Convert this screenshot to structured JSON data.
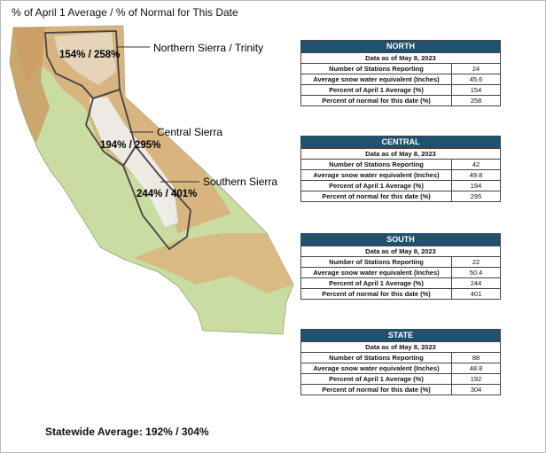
{
  "title": "% of April 1 Average / % of Normal for This Date",
  "regions": [
    {
      "name": "Northern Sierra / Trinity",
      "label": "154% / 258%"
    },
    {
      "name": "Central Sierra",
      "label": "194% / 295%"
    },
    {
      "name": "Southern Sierra",
      "label": "244% / 401%"
    }
  ],
  "tables": [
    {
      "title": "NORTH",
      "date": "Data as of May 8, 2023",
      "rows": [
        [
          "Number of Stations Reporting",
          24
        ],
        [
          "Average snow water equivalent (Inches)",
          45.6
        ],
        [
          "Percent of April 1 Average (%)",
          154
        ],
        [
          "Percent of normal for this date (%)",
          258
        ]
      ]
    },
    {
      "title": "CENTRAL",
      "date": "Data as of May 8, 2023",
      "rows": [
        [
          "Number of Stations Reporting",
          42
        ],
        [
          "Average snow water equivalent (Inches)",
          49.8
        ],
        [
          "Percent of April 1 Average (%)",
          194
        ],
        [
          "Percent of normal for this date (%)",
          295
        ]
      ]
    },
    {
      "title": "SOUTH",
      "date": "Data as of May 8, 2023",
      "rows": [
        [
          "Number of Stations Reporting",
          22
        ],
        [
          "Average snow water equivalent (Inches)",
          50.4
        ],
        [
          "Percent of April 1 Average (%)",
          244
        ],
        [
          "Percent of normal for this date (%)",
          401
        ]
      ]
    },
    {
      "title": "STATE",
      "date": "Data as of May 8, 2023",
      "rows": [
        [
          "Number of Stations Reporting",
          88
        ],
        [
          "Average snow water equivalent (Inches)",
          48.8
        ],
        [
          "Percent of April 1 Average (%)",
          192
        ],
        [
          "Percent of normal for this date (%)",
          304
        ]
      ]
    }
  ],
  "statewide": "Statewide Average: 192% / 304%"
}
